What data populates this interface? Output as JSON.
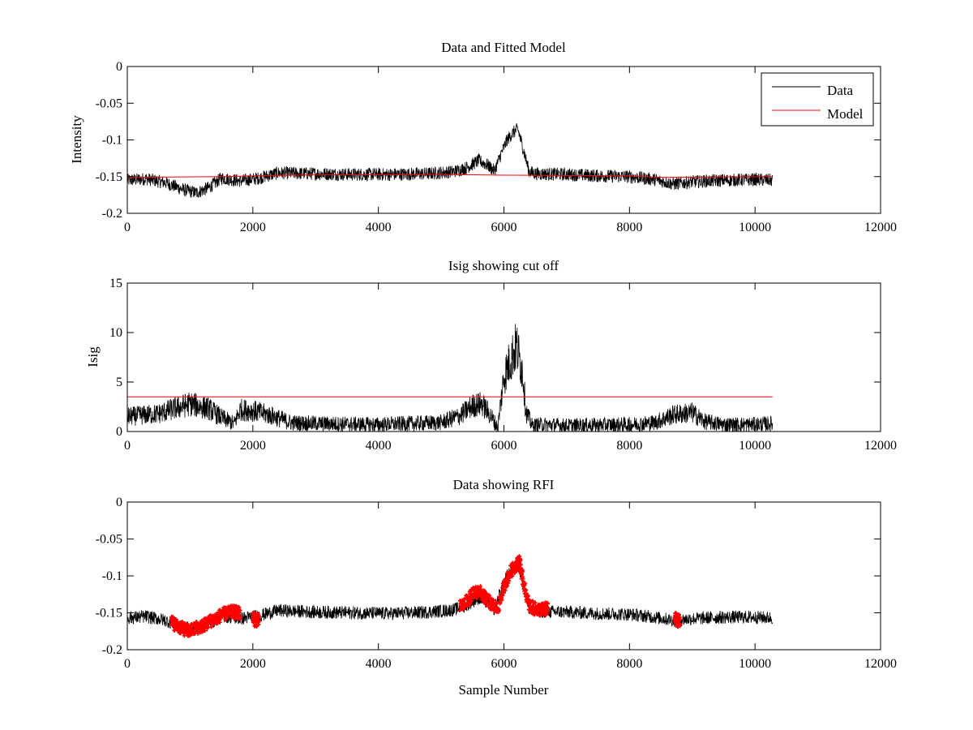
{
  "figure": {
    "background": "#ffffff",
    "data_color": "#000000",
    "model_color": "#ff0000",
    "rfi_color": "#ff0000"
  },
  "chart_data": [
    {
      "type": "line",
      "title": "Data and Fitted Model",
      "xlabel": "",
      "ylabel": "Intensity",
      "xlim": [
        0,
        12000
      ],
      "ylim": [
        -0.2,
        0
      ],
      "xticks": [
        0,
        2000,
        4000,
        6000,
        8000,
        10000,
        12000
      ],
      "yticks": [
        0,
        -0.05,
        -0.1,
        -0.15,
        -0.2
      ],
      "xtick_labels": [
        "0",
        "2000",
        "4000",
        "6000",
        "8000",
        "10000",
        "12000"
      ],
      "ytick_labels": [
        "0",
        "-0.05",
        "-0.1",
        "-0.15",
        "-0.2"
      ],
      "grid": false,
      "legend": {
        "placement": "top-right",
        "entries": [
          "Data",
          "Model"
        ]
      },
      "series": [
        {
          "name": "Data",
          "color": "#000000",
          "x": [
            0,
            300,
            600,
            900,
            1100,
            1300,
            1500,
            1800,
            2100,
            2400,
            3000,
            3600,
            4200,
            4800,
            5200,
            5400,
            5600,
            5750,
            5850,
            5950,
            6050,
            6150,
            6220,
            6300,
            6400,
            6500,
            7000,
            7500,
            8000,
            8400,
            8700,
            9000,
            9500,
            10000,
            10280
          ],
          "y": [
            -0.155,
            -0.153,
            -0.158,
            -0.168,
            -0.172,
            -0.165,
            -0.152,
            -0.156,
            -0.152,
            -0.145,
            -0.146,
            -0.147,
            -0.147,
            -0.146,
            -0.143,
            -0.138,
            -0.128,
            -0.135,
            -0.142,
            -0.12,
            -0.1,
            -0.09,
            -0.085,
            -0.11,
            -0.143,
            -0.146,
            -0.147,
            -0.149,
            -0.15,
            -0.154,
            -0.16,
            -0.157,
            -0.155,
            -0.154,
            -0.155
          ],
          "noise_amplitude": 0.009
        },
        {
          "name": "Model",
          "color": "#ff0000",
          "x": [
            0,
            1500,
            2500,
            5000,
            6000,
            8000,
            8500,
            10280
          ],
          "y": [
            -0.151,
            -0.15,
            -0.148,
            -0.147,
            -0.148,
            -0.149,
            -0.151,
            -0.15
          ]
        }
      ]
    },
    {
      "type": "line",
      "title": "Isig showing cut off",
      "xlabel": "",
      "ylabel": "Isig",
      "xlim": [
        0,
        12000
      ],
      "ylim": [
        0,
        15
      ],
      "xticks": [
        0,
        2000,
        4000,
        6000,
        8000,
        10000,
        12000
      ],
      "yticks": [
        0,
        5,
        10,
        15
      ],
      "xtick_labels": [
        "0",
        "2000",
        "4000",
        "6000",
        "8000",
        "10000",
        "12000"
      ],
      "ytick_labels": [
        "0",
        "5",
        "10",
        "15"
      ],
      "grid": false,
      "series": [
        {
          "name": "",
          "color": "#000000",
          "kind": "spikes",
          "x": [
            0,
            500,
            800,
            1000,
            1300,
            1500,
            1700,
            1800,
            2000,
            2300,
            2600,
            3000,
            4000,
            5000,
            5300,
            5500,
            5650,
            5800,
            5900,
            6000,
            6100,
            6200,
            6300,
            6350,
            6450,
            6600,
            7000,
            8000,
            8400,
            8700,
            9000,
            9200,
            9500,
            10000,
            10280
          ],
          "y": [
            1.5,
            1.8,
            2.4,
            2.8,
            2.3,
            1.4,
            0.8,
            2.2,
            2.1,
            1.6,
            0.9,
            0.8,
            0.7,
            0.9,
            1.6,
            2.6,
            2.8,
            1.5,
            0.4,
            5.5,
            7.2,
            8.6,
            6.0,
            2.0,
            0.6,
            0.7,
            0.6,
            0.7,
            0.9,
            1.7,
            1.9,
            1.0,
            0.7,
            0.7,
            0.8
          ],
          "noise_amplitude": 1.5
        },
        {
          "name": "",
          "color": "#ff0000",
          "x": [
            0,
            10280
          ],
          "y": [
            3.5,
            3.5
          ]
        }
      ]
    },
    {
      "type": "line",
      "title": "Data showing RFI",
      "xlabel": "Sample Number",
      "ylabel": "",
      "xlim": [
        0,
        12000
      ],
      "ylim": [
        -0.2,
        0
      ],
      "xticks": [
        0,
        2000,
        4000,
        6000,
        8000,
        10000,
        12000
      ],
      "yticks": [
        0,
        -0.05,
        -0.1,
        -0.15,
        -0.2
      ],
      "xtick_labels": [
        "0",
        "2000",
        "4000",
        "6000",
        "8000",
        "10000",
        "12000"
      ],
      "ytick_labels": [
        "0",
        "-0.05",
        "-0.1",
        "-0.15",
        "-0.2"
      ],
      "grid": false,
      "series": [
        {
          "name": "",
          "color": "#000000",
          "x": [
            0,
            300,
            600,
            900,
            1100,
            1300,
            1500,
            1800,
            2100,
            2400,
            3000,
            3600,
            4200,
            4800,
            5200,
            5400,
            5600,
            5750,
            5850,
            5950,
            6050,
            6150,
            6220,
            6300,
            6400,
            6500,
            7000,
            7500,
            8000,
            8400,
            8700,
            9000,
            9500,
            10000,
            10280
          ],
          "y": [
            -0.157,
            -0.155,
            -0.16,
            -0.17,
            -0.173,
            -0.166,
            -0.154,
            -0.158,
            -0.154,
            -0.147,
            -0.149,
            -0.15,
            -0.151,
            -0.149,
            -0.146,
            -0.14,
            -0.13,
            -0.137,
            -0.145,
            -0.12,
            -0.1,
            -0.09,
            -0.083,
            -0.11,
            -0.143,
            -0.148,
            -0.149,
            -0.151,
            -0.152,
            -0.156,
            -0.16,
            -0.158,
            -0.156,
            -0.156,
            -0.157
          ],
          "noise_amplitude": 0.009
        },
        {
          "name": "",
          "color": "#ff0000",
          "kind": "markers",
          "x": [
            700,
            800,
            900,
            1000,
            1100,
            1200,
            1300,
            1400,
            1500,
            1600,
            1700,
            1750,
            2000,
            2050,
            5300,
            5400,
            5500,
            5600,
            5700,
            5800,
            5900,
            6000,
            6100,
            6200,
            6250,
            6300,
            6400,
            6500,
            6600,
            6650,
            8720,
            8760
          ],
          "y": [
            -0.162,
            -0.168,
            -0.172,
            -0.175,
            -0.17,
            -0.168,
            -0.162,
            -0.158,
            -0.153,
            -0.15,
            -0.149,
            -0.15,
            -0.158,
            -0.16,
            -0.142,
            -0.135,
            -0.125,
            -0.12,
            -0.13,
            -0.138,
            -0.145,
            -0.115,
            -0.095,
            -0.085,
            -0.08,
            -0.105,
            -0.14,
            -0.145,
            -0.146,
            -0.145,
            -0.158,
            -0.16
          ],
          "noise_amplitude": 0.009
        }
      ]
    }
  ]
}
